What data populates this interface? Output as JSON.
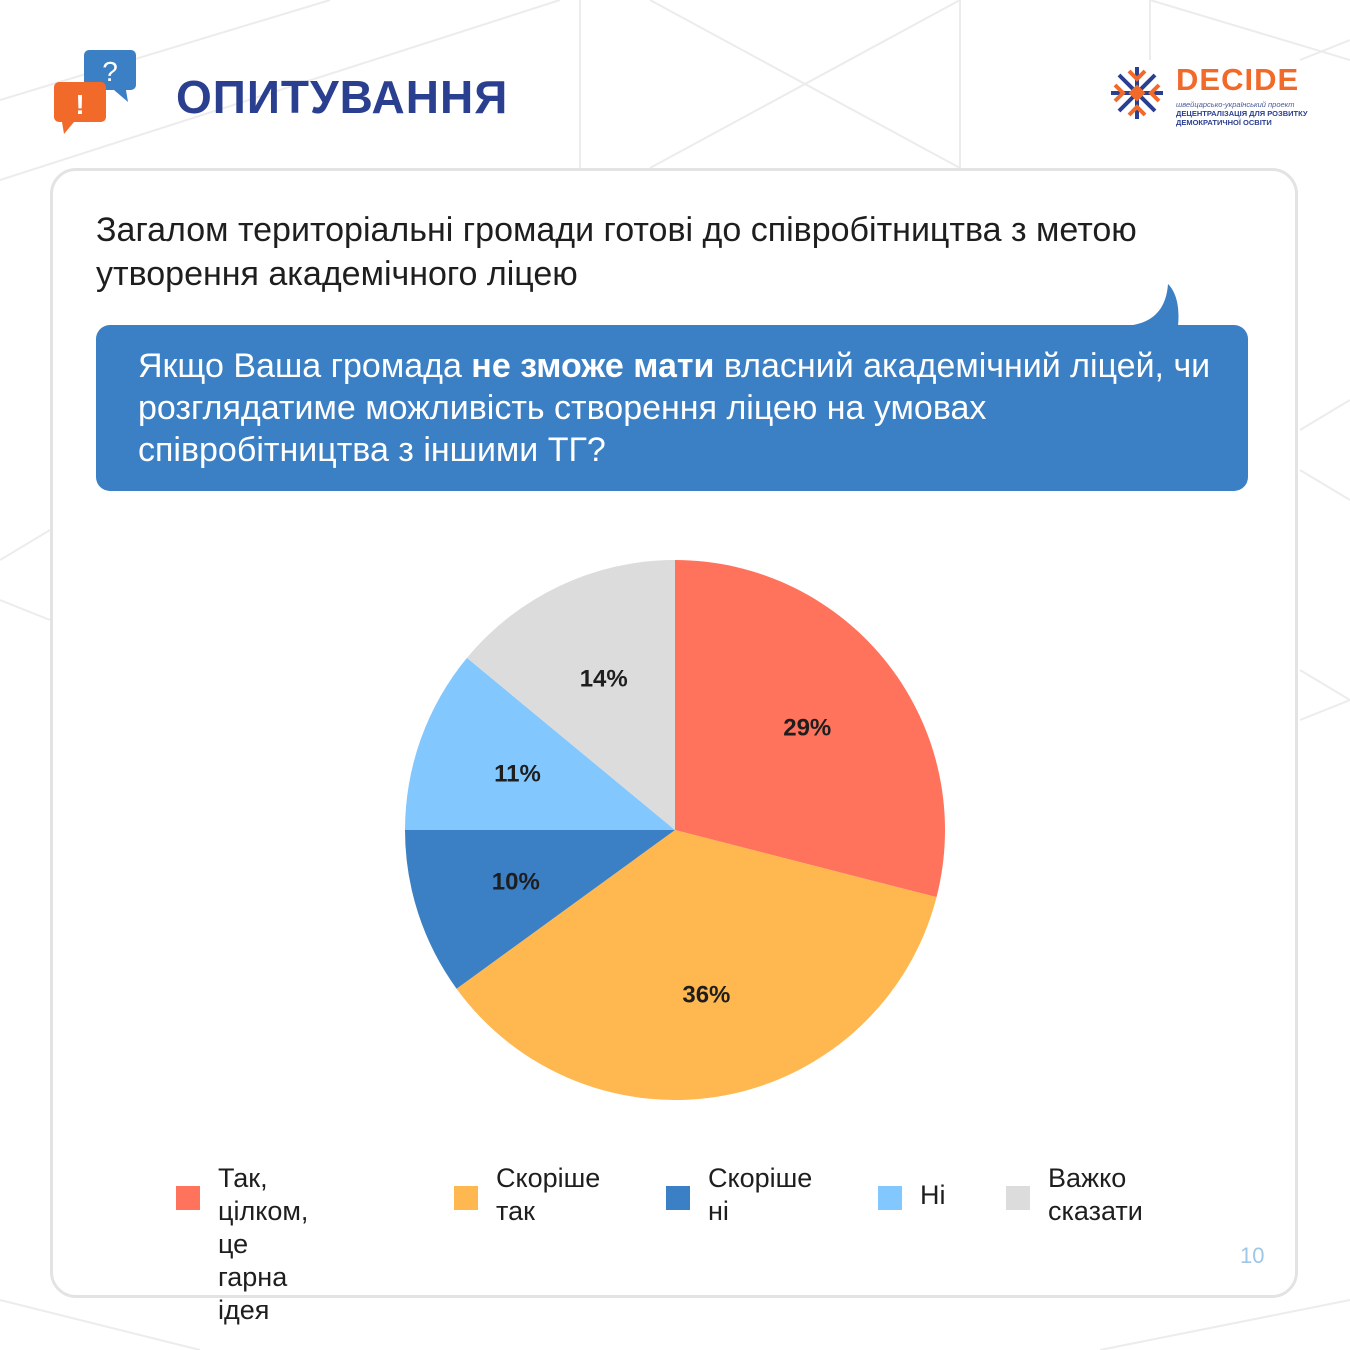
{
  "header": {
    "title": "ОПИТУВАННЯ",
    "icon": "speech-bubbles-question-exclamation-icon"
  },
  "logo": {
    "name": "DECIDE",
    "subtitle_line1": "швейцарсько-український проект",
    "subtitle_line2": "ДЕЦЕНТРАЛІЗАЦІЯ ДЛЯ РОЗВИТКУ",
    "subtitle_line3": "ДЕМОКРАТИЧНОЇ ОСВІТИ"
  },
  "statement": "Загалом територіальні громади готові до співробітництва з метою утворення академічного ліцею",
  "question": {
    "part1": "Якщо Ваша громада ",
    "bold": "не зможе мати",
    "part2": " власний академічний ліцей, чи розглядатиме можливість створення ліцею на умовах співробітництва з іншими ТГ?"
  },
  "chart_data": {
    "type": "pie",
    "title": "",
    "slices": [
      {
        "label": "Так, цілком, це гарна ідея",
        "value": 29,
        "value_label": "29%",
        "color": "#ff735c"
      },
      {
        "label": "Скоріше так",
        "value": 36,
        "value_label": "36%",
        "color": "#ffb74f"
      },
      {
        "label": "Скоріше ні",
        "value": 10,
        "value_label": "10%",
        "color": "#3b7fc4"
      },
      {
        "label": "Ні",
        "value": 11,
        "value_label": "11%",
        "color": "#82c8ff"
      },
      {
        "label": "Важко сказати",
        "value": 14,
        "value_label": "14%",
        "color": "#dcdcdc"
      }
    ],
    "start_angle": "12 o'clock",
    "direction": "clockwise",
    "legend_position": "bottom"
  },
  "legend": [
    {
      "text": "Так, цілком,\nце гарна ідея",
      "color": "#ff735c"
    },
    {
      "text": "Скоріше\nтак",
      "color": "#ffb74f"
    },
    {
      "text": "Скоріше\nні",
      "color": "#3b7fc4"
    },
    {
      "text": "Ні",
      "color": "#82c8ff"
    },
    {
      "text": "Важко\nсказати",
      "color": "#dcdcdc"
    }
  ],
  "page_number": "10",
  "colors": {
    "title": "#2a3f8f",
    "accent_orange": "#f26a2a",
    "bubble": "#3b7fc4"
  }
}
